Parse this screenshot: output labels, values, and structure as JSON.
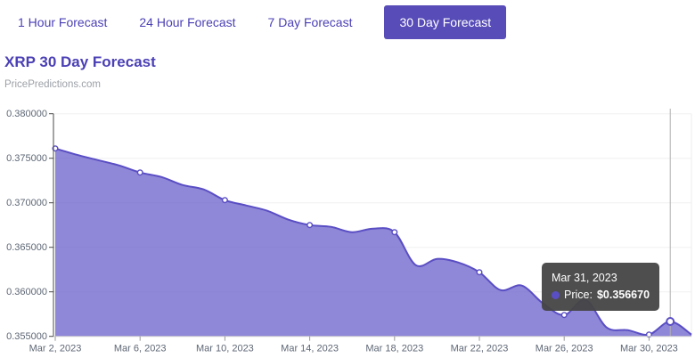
{
  "tabs": {
    "items": [
      {
        "label": "1 Hour Forecast",
        "active": false
      },
      {
        "label": "24 Hour Forecast",
        "active": false
      },
      {
        "label": "7 Day Forecast",
        "active": false
      },
      {
        "label": "30 Day Forecast",
        "active": true
      }
    ]
  },
  "header": {
    "title": "XRP 30 Day Forecast",
    "subtitle": "PricePredictions.com"
  },
  "tooltip": {
    "date": "Mar 31, 2023",
    "price_label": "Price:",
    "price_value": "$0.356670",
    "bullet_icon": "series-bullet"
  },
  "colors": {
    "accent": "#574CB8",
    "accent_text": "#4B40B5",
    "line": "#5A4EC4",
    "fill": "rgba(90,78,196,0.68)",
    "grid": "#F0F0F0",
    "axis_y": "#4A4A4A",
    "axis_x": "#CFCFCF",
    "tick": "#999999",
    "label": "#5E6775",
    "crosshair": "#AFAFAF"
  },
  "chart_data": {
    "type": "area",
    "title": "XRP 30 Day Forecast",
    "xlabel": "",
    "ylabel": "",
    "ylim": [
      0.355,
      0.38
    ],
    "grid": "horizontal",
    "legend_position": "none",
    "dates": [
      "Mar 2, 2023",
      "Mar 3, 2023",
      "Mar 4, 2023",
      "Mar 5, 2023",
      "Mar 6, 2023",
      "Mar 7, 2023",
      "Mar 8, 2023",
      "Mar 9, 2023",
      "Mar 10, 2023",
      "Mar 11, 2023",
      "Mar 12, 2023",
      "Mar 13, 2023",
      "Mar 14, 2023",
      "Mar 15, 2023",
      "Mar 16, 2023",
      "Mar 17, 2023",
      "Mar 18, 2023",
      "Mar 19, 2023",
      "Mar 20, 2023",
      "Mar 21, 2023",
      "Mar 22, 2023",
      "Mar 23, 2023",
      "Mar 24, 2023",
      "Mar 25, 2023",
      "Mar 26, 2023",
      "Mar 27, 2023",
      "Mar 28, 2023",
      "Mar 29, 2023",
      "Mar 30, 2023",
      "Mar 31, 2023",
      "Apr 1, 2023"
    ],
    "values": [
      0.3761,
      0.3754,
      0.3748,
      0.3742,
      0.3734,
      0.3729,
      0.372,
      0.3715,
      0.3703,
      0.3697,
      0.3691,
      0.3681,
      0.3675,
      0.3673,
      0.3667,
      0.3671,
      0.3667,
      0.363,
      0.3637,
      0.3633,
      0.3622,
      0.3602,
      0.3607,
      0.3587,
      0.3574,
      0.3591,
      0.356,
      0.3557,
      0.3552,
      0.35667,
      0.3552
    ],
    "series_name": "Price",
    "x_tick_indices": [
      0,
      4,
      8,
      12,
      16,
      20,
      24,
      28
    ],
    "x_tick_labels": [
      "Mar 2, 2023",
      "Mar 6, 2023",
      "Mar 10, 2023",
      "Mar 14, 2023",
      "Mar 18, 2023",
      "Mar 22, 2023",
      "Mar 26, 2023",
      "Mar 30, 2023"
    ],
    "y_ticks": [
      0.355,
      0.36,
      0.365,
      0.37,
      0.375,
      0.38
    ],
    "y_tick_labels": [
      "0.355000",
      "0.360000",
      "0.365000",
      "0.370000",
      "0.375000",
      "0.380000"
    ],
    "marker_indices": [
      0,
      4,
      8,
      12,
      16,
      20,
      24,
      28
    ],
    "hover_index": 29,
    "hover_value_label": "$0.356670"
  }
}
